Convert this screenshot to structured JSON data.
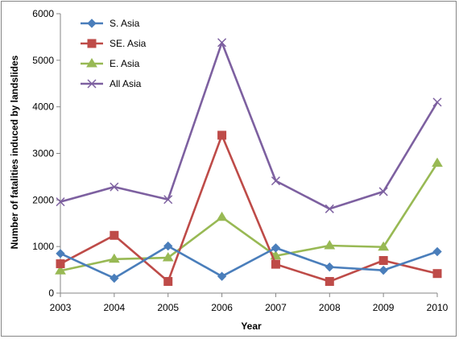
{
  "chart_data": {
    "type": "line",
    "title": "",
    "xlabel": "Year",
    "ylabel": "Number of fatalities induced by landslides",
    "categories": [
      "2003",
      "2004",
      "2005",
      "2006",
      "2007",
      "2008",
      "2009",
      "2010"
    ],
    "ylim": [
      0,
      6000
    ],
    "yticks": [
      "0",
      "1000",
      "2000",
      "3000",
      "4000",
      "5000",
      "6000"
    ],
    "grid": false,
    "legend_position": "top-left",
    "series": [
      {
        "name": "S. Asia",
        "color": "#4a7ebb",
        "marker": "diamond",
        "values": [
          850,
          320,
          1010,
          360,
          970,
          560,
          490,
          890
        ]
      },
      {
        "name": "SE. Asia",
        "color": "#be4b48",
        "marker": "square",
        "values": [
          630,
          1240,
          250,
          3390,
          620,
          250,
          700,
          420
        ]
      },
      {
        "name": "E. Asia",
        "color": "#98b954",
        "marker": "triangle",
        "values": [
          480,
          730,
          760,
          1630,
          800,
          1020,
          990,
          2790
        ]
      },
      {
        "name": "All Asia",
        "color": "#7d60a0",
        "marker": "x",
        "values": [
          1960,
          2280,
          2010,
          5380,
          2410,
          1810,
          2180,
          4100
        ]
      }
    ]
  }
}
